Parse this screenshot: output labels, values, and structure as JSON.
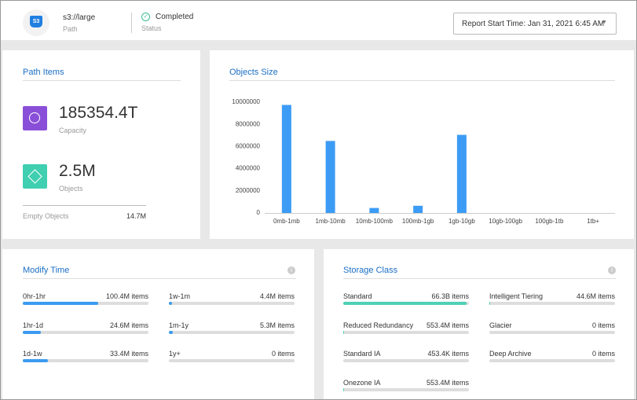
{
  "header": {
    "icon": "S3",
    "path": "s3://large",
    "path_label": "Path",
    "status": "Completed",
    "status_label": "Status",
    "report": "Report Start Time: Jan 31, 2021 6:45 AM"
  },
  "path_items": {
    "title": "Path Items",
    "capacity": "185354.4T",
    "capacity_label": "Capacity",
    "objects": "2.5M",
    "objects_label": "Objects",
    "empty_label": "Empty Objects",
    "empty": "14.7M"
  },
  "chart_data": {
    "type": "bar",
    "title": "Objects Size",
    "categories": [
      "0mb-1mb",
      "1mb-10mb",
      "10mb-100mb",
      "100mb-1gb",
      "1gb-10gb",
      "10gb-100gb",
      "100gb-1tb",
      "1tb+"
    ],
    "values": [
      9750000,
      6500000,
      450000,
      650000,
      7050000,
      0,
      0,
      0
    ],
    "color": "#3c9cf5",
    "ylim": [
      0,
      10000000
    ],
    "yticks": [
      0,
      2000000,
      4000000,
      6000000,
      8000000,
      10000000
    ]
  },
  "modify_time": {
    "title": "Modify Time",
    "color": "#3a9bf0",
    "items": [
      {
        "name": "0hr-1hr",
        "count": 100400000,
        "label": "100.4M items"
      },
      {
        "name": "1hr-1d",
        "count": 24600000,
        "label": "24.6M items"
      },
      {
        "name": "1d-1w",
        "count": 33400000,
        "label": "33.4M items"
      },
      {
        "name": "1w-1m",
        "count": 4400000,
        "label": "4.4M items"
      },
      {
        "name": "1m-1y",
        "count": 5300000,
        "label": "5.3M items"
      },
      {
        "name": "1y+",
        "count": 0,
        "label": "0 items"
      }
    ]
  },
  "storage_class": {
    "title": "Storage Class",
    "color": "#4fd1b5",
    "items": [
      {
        "name": "Standard",
        "count": 66300000000,
        "label": "66.3B items"
      },
      {
        "name": "Reduced Redundancy",
        "count": 553400000,
        "label": "553.4M items"
      },
      {
        "name": "Standard IA",
        "count": 453400,
        "label": "453.4K items"
      },
      {
        "name": "Onezone IA",
        "count": 553400000,
        "label": "553.4M items"
      },
      {
        "name": "Intelligent Tiering",
        "count": 44600000,
        "label": "44.6M items"
      },
      {
        "name": "Glacier",
        "count": 0,
        "label": "0 items"
      },
      {
        "name": "Deep Archive",
        "count": 0,
        "label": "0 items"
      }
    ]
  }
}
